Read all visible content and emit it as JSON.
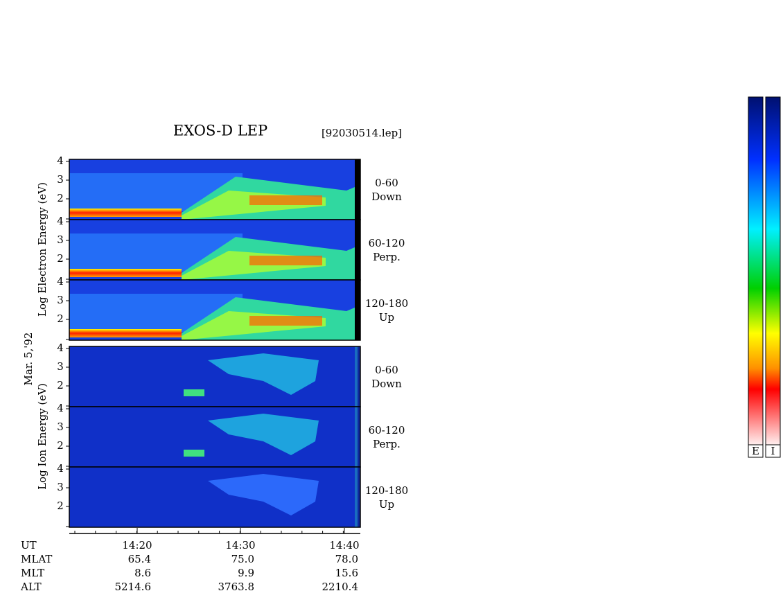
{
  "header": {
    "title": "EXOS-D LEP",
    "file": "[92030514.lep]"
  },
  "date": "Mar. 5,'92",
  "groups": [
    {
      "label": "Log Electron Energy (eV)",
      "panels": [
        {
          "angle": "0-60",
          "direction": "Down"
        },
        {
          "angle": "60-120",
          "direction": "Perp."
        },
        {
          "angle": "120-180",
          "direction": "Up"
        }
      ]
    },
    {
      "label": "Log Ion Energy (eV)",
      "panels": [
        {
          "angle": "0-60",
          "direction": "Down"
        },
        {
          "angle": "60-120",
          "direction": "Perp."
        },
        {
          "angle": "120-180",
          "direction": "Up"
        }
      ]
    }
  ],
  "yticks": [
    2,
    3,
    4
  ],
  "xticks": [
    "14:20",
    "14:30",
    "14:40"
  ],
  "footer": [
    {
      "label": "UT",
      "values": []
    },
    {
      "label": "MLAT",
      "values": [
        "65.4",
        "75.0",
        "78.0"
      ]
    },
    {
      "label": "MLT",
      "values": [
        "8.6",
        "9.9",
        "15.6"
      ]
    },
    {
      "label": "ALT",
      "values": [
        "5214.6",
        "3763.8",
        "2210.4"
      ]
    }
  ],
  "colorbars": [
    "E",
    "I"
  ]
}
